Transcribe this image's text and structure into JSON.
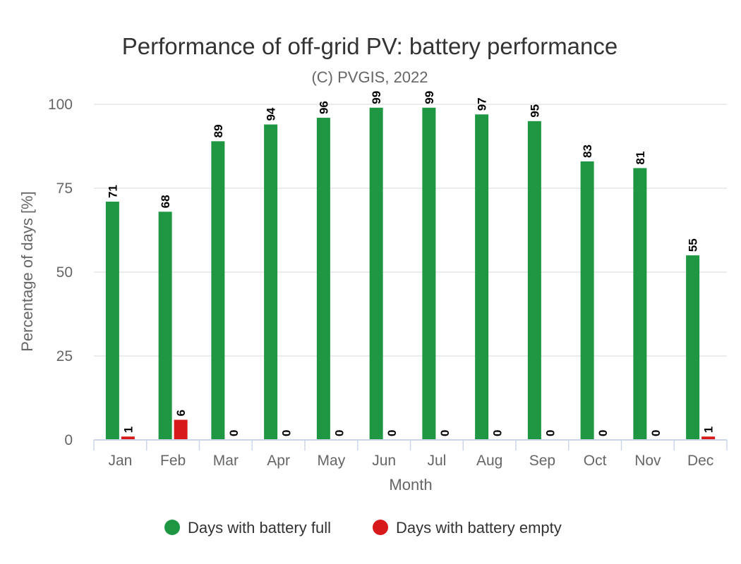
{
  "chart_data": {
    "type": "bar",
    "title": "Performance of off-grid PV: battery performance",
    "subtitle": "(C) PVGIS, 2022",
    "xlabel": "Month",
    "ylabel": "Percentage of days [%]",
    "ylim": [
      0,
      100
    ],
    "yticks": [
      "0",
      "25",
      "50",
      "75",
      "100"
    ],
    "grid": true,
    "legend_position": "bottom-center",
    "categories": [
      "Jan",
      "Feb",
      "Mar",
      "Apr",
      "May",
      "Jun",
      "Jul",
      "Aug",
      "Sep",
      "Oct",
      "Nov",
      "Dec"
    ],
    "series": [
      {
        "name": "Days with battery full",
        "color": "#1e9642",
        "values": [
          71,
          68,
          89,
          94,
          96,
          99,
          99,
          97,
          95,
          83,
          81,
          55
        ]
      },
      {
        "name": "Days with battery empty",
        "color": "#d7191c",
        "values": [
          1,
          6,
          0,
          0,
          0,
          0,
          0,
          0,
          0,
          0,
          0,
          1
        ]
      }
    ]
  }
}
